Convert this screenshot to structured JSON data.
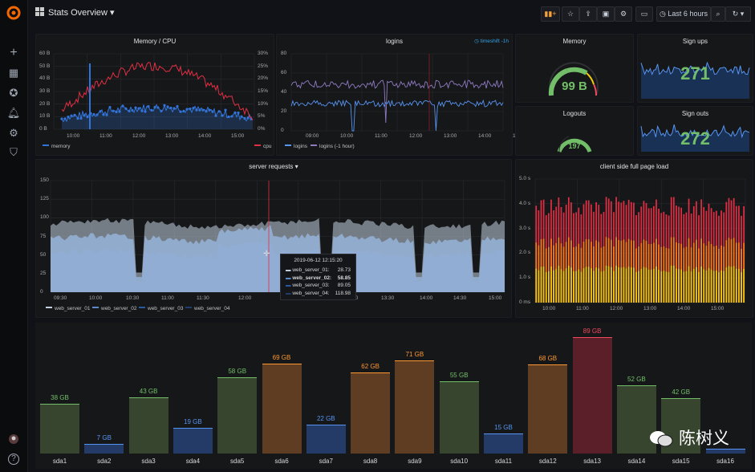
{
  "header": {
    "title": "Stats Overview",
    "time_range": "Last 6 hours"
  },
  "sidebar": {
    "icons": [
      "grafana-logo",
      "plus-icon",
      "dashboards-icon",
      "explore-icon",
      "alerting-icon",
      "config-icon",
      "shield-icon"
    ],
    "help": "?"
  },
  "memory_cpu": {
    "title": "Memory / CPU",
    "y_left": [
      "60 B",
      "50 B",
      "40 B",
      "30 B",
      "20 B",
      "10 B",
      "0 B"
    ],
    "y_right": [
      "30%",
      "25%",
      "20%",
      "15%",
      "10%",
      "5%",
      "0%"
    ],
    "x_ticks": [
      "10:00",
      "11:00",
      "12:00",
      "13:00",
      "14:00",
      "15:00"
    ],
    "legend_memory": "memory",
    "legend_cpu": "cpu",
    "color_memory": "#3274d9",
    "color_cpu": "#e02f44"
  },
  "logins": {
    "title": "logins",
    "timeshift": "timeshift -1h",
    "y": [
      "80",
      "60",
      "40",
      "20",
      "0"
    ],
    "x_ticks": [
      "09:00",
      "10:00",
      "11:00",
      "12:00",
      "13:00",
      "14:00",
      "15:00"
    ],
    "legend_logins": "logins",
    "legend_logins_1h": "logins (-1 hour)"
  },
  "memory_gauge": {
    "title": "Memory",
    "value": "99 B"
  },
  "signups": {
    "title": "Sign ups",
    "value": "271"
  },
  "logouts": {
    "title": "Logouts",
    "value": "197"
  },
  "signouts": {
    "title": "Sign outs",
    "value": "272"
  },
  "server_requests": {
    "title": "server requests",
    "y": [
      "150",
      "125",
      "100",
      "75",
      "50",
      "25",
      "0"
    ],
    "x_ticks": [
      "09:30",
      "10:00",
      "10:30",
      "11:00",
      "11:30",
      "12:00",
      "13:00",
      "13:30",
      "14:00",
      "14:30",
      "15:00"
    ],
    "legend": [
      "web_server_01",
      "web_server_02",
      "web_server_03",
      "web_server_04"
    ],
    "tooltip": {
      "time": "2019-06-12 12:15:20",
      "rows": [
        {
          "name": "web_server_01:",
          "value": "28.73"
        },
        {
          "name": "web_server_02:",
          "value": "58.85"
        },
        {
          "name": "web_server_03:",
          "value": "89.05"
        },
        {
          "name": "web_server_04:",
          "value": "118.98"
        }
      ]
    }
  },
  "page_load": {
    "title": "client side full page load",
    "y": [
      "5.0 s",
      "4.0 s",
      "3.0 s",
      "2.0 s",
      "1.0 s",
      "0 ms"
    ],
    "x_ticks": [
      "10:00",
      "11:00",
      "12:00",
      "13:00",
      "14:00",
      "15:00"
    ]
  },
  "disk": {
    "bars": [
      {
        "name": "sda1",
        "label": "38 GB",
        "value": 38,
        "fill": "#37442e",
        "edge": "#73bf69",
        "text": "#73bf69"
      },
      {
        "name": "sda2",
        "label": "7 GB",
        "value": 7,
        "fill": "#243b68",
        "edge": "#5794f2",
        "text": "#5794f2"
      },
      {
        "name": "sda3",
        "label": "43 GB",
        "value": 43,
        "fill": "#37442e",
        "edge": "#73bf69",
        "text": "#73bf69"
      },
      {
        "name": "sda4",
        "label": "19 GB",
        "value": 19,
        "fill": "#243b68",
        "edge": "#5794f2",
        "text": "#5794f2"
      },
      {
        "name": "sda5",
        "label": "58 GB",
        "value": 58,
        "fill": "#37442e",
        "edge": "#73bf69",
        "text": "#73bf69"
      },
      {
        "name": "sda6",
        "label": "69 GB",
        "value": 69,
        "fill": "#5e3d22",
        "edge": "#ff9830",
        "text": "#ff9830"
      },
      {
        "name": "sda7",
        "label": "22 GB",
        "value": 22,
        "fill": "#243b68",
        "edge": "#5794f2",
        "text": "#5794f2"
      },
      {
        "name": "sda8",
        "label": "62 GB",
        "value": 62,
        "fill": "#5e3d22",
        "edge": "#ff9830",
        "text": "#ff9830"
      },
      {
        "name": "sda9",
        "label": "71 GB",
        "value": 71,
        "fill": "#5e3d22",
        "edge": "#ff9830",
        "text": "#ff9830"
      },
      {
        "name": "sda10",
        "label": "55 GB",
        "value": 55,
        "fill": "#37442e",
        "edge": "#73bf69",
        "text": "#73bf69"
      },
      {
        "name": "sda11",
        "label": "15 GB",
        "value": 15,
        "fill": "#243b68",
        "edge": "#5794f2",
        "text": "#5794f2"
      },
      {
        "name": "sda12",
        "label": "68 GB",
        "value": 68,
        "fill": "#5e3d22",
        "edge": "#ff9830",
        "text": "#ff9830"
      },
      {
        "name": "sda13",
        "label": "89 GB",
        "value": 89,
        "fill": "#5b1f2a",
        "edge": "#f2495c",
        "text": "#f2495c"
      },
      {
        "name": "sda14",
        "label": "52 GB",
        "value": 52,
        "fill": "#37442e",
        "edge": "#73bf69",
        "text": "#73bf69"
      },
      {
        "name": "sda15",
        "label": "42 GB",
        "value": 42,
        "fill": "#37442e",
        "edge": "#73bf69",
        "text": "#73bf69"
      },
      {
        "name": "sda16",
        "label": "",
        "value": 3,
        "fill": "#243b68",
        "edge": "#5794f2",
        "text": "#5794f2"
      }
    ]
  },
  "watermark": "陈树义"
}
